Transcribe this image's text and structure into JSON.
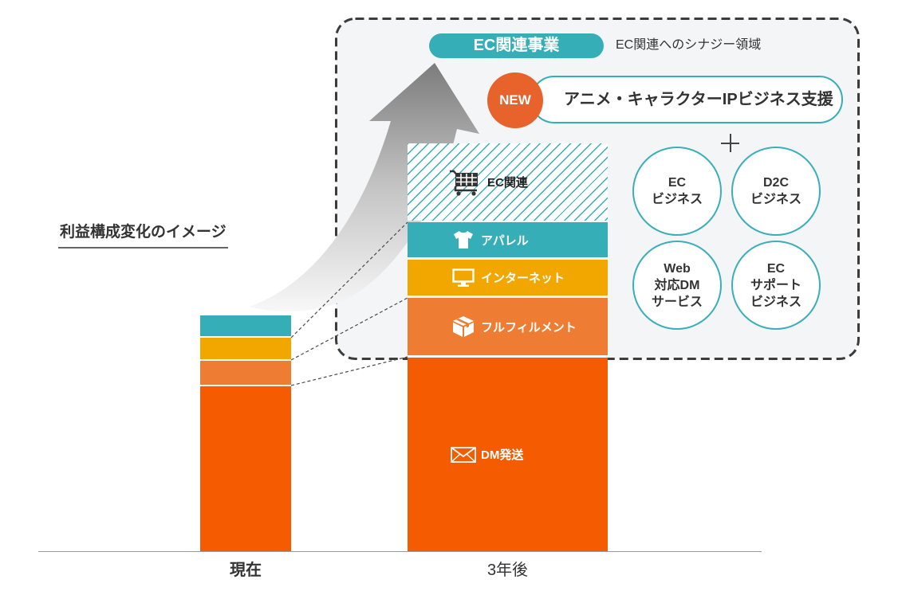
{
  "title": "利益構成変化のイメージ",
  "colors": {
    "teal": "#36AEB8",
    "yellow": "#F1A700",
    "orange_light": "#EE7D33",
    "orange_dark": "#F55B00",
    "new_badge": "#E8632B",
    "text": "#333333"
  },
  "current_bar": {
    "label": "現在",
    "segments": [
      {
        "color": "#36AEB8"
      },
      {
        "color": "#F1A700"
      },
      {
        "color": "#EE7D33"
      },
      {
        "color": "#F55B00"
      }
    ]
  },
  "future_bar": {
    "label": "3年後",
    "segments": [
      {
        "label": "EC関連",
        "icon": "shopping-cart-icon"
      },
      {
        "label": "アパレル",
        "icon": "t-shirt-icon",
        "color": "#36AEB8"
      },
      {
        "label": "インターネット",
        "icon": "monitor-icon",
        "color": "#F1A700"
      },
      {
        "label": "フルフィルメント",
        "icon": "box-icon",
        "color": "#EE7D33"
      },
      {
        "label": "DM発送",
        "icon": "envelope-icon",
        "color": "#F55B00"
      }
    ]
  },
  "ec_area": {
    "heading": "EC関連事業",
    "caption": "EC関連へのシナジー領域",
    "new_badge": "NEW",
    "new_business": "アニメ・キャラクターIPビジネス支援",
    "businesses": [
      {
        "lines": [
          "EC",
          "ビジネス"
        ]
      },
      {
        "lines": [
          "D2C",
          "ビジネス"
        ]
      },
      {
        "lines": [
          "Web",
          "対応DM",
          "サービス"
        ]
      },
      {
        "lines": [
          "EC",
          "サポート",
          "ビジネス"
        ]
      }
    ]
  }
}
